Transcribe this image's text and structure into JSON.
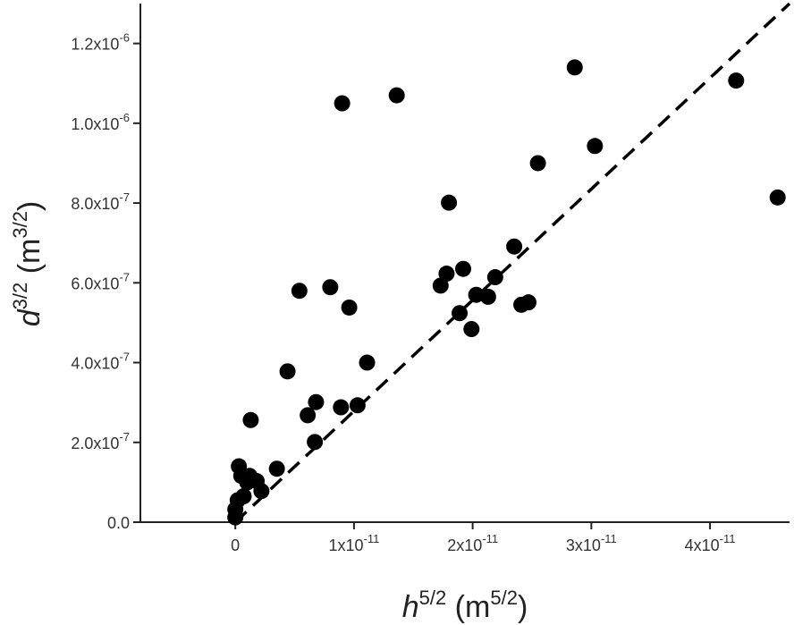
{
  "chart_data": {
    "type": "scatter",
    "xlabel": {
      "base": "h",
      "sup": "5/2",
      "unit_base": "m",
      "unit_sup": "5/2"
    },
    "ylabel": {
      "base": "d",
      "sup": "3/2",
      "unit_base": "m",
      "unit_sup": "3/2"
    },
    "xlim": [
      -8e-12,
      4.67e-11
    ],
    "ylim": [
      0,
      1.3e-06
    ],
    "x_ticks": [
      {
        "value": 0,
        "mantissa": "0",
        "exp": ""
      },
      {
        "value": 1e-11,
        "mantissa": "1x10",
        "exp": "-11"
      },
      {
        "value": 2e-11,
        "mantissa": "2x10",
        "exp": "-11"
      },
      {
        "value": 3e-11,
        "mantissa": "3x10",
        "exp": "-11"
      },
      {
        "value": 4e-11,
        "mantissa": "4x10",
        "exp": "-11"
      }
    ],
    "y_ticks": [
      {
        "value": 0,
        "mantissa": "0.0",
        "exp": ""
      },
      {
        "value": 2e-07,
        "mantissa": "2.0x10",
        "exp": "-7"
      },
      {
        "value": 4e-07,
        "mantissa": "4.0x10",
        "exp": "-7"
      },
      {
        "value": 6e-07,
        "mantissa": "6.0x10",
        "exp": "-7"
      },
      {
        "value": 8e-07,
        "mantissa": "8.0x10",
        "exp": "-7"
      },
      {
        "value": 1e-06,
        "mantissa": "1.0x10",
        "exp": "-6"
      },
      {
        "value": 1.2e-06,
        "mantissa": "1.2x10",
        "exp": "-6"
      }
    ],
    "grid": false,
    "series": [
      {
        "type": "scatter",
        "color": "#000000",
        "points": [
          [
            0.0,
            1.2e-08
          ],
          [
            0.0,
            3.2e-08
          ],
          [
            2e-13,
            5.5e-08
          ],
          [
            5e-13,
            1.16e-07
          ],
          [
            3e-13,
            1.4e-07
          ],
          [
            7e-13,
            6.5e-08
          ],
          [
            1e-12,
            1e-07
          ],
          [
            1.2e-12,
            1.16e-07
          ],
          [
            1.8e-12,
            1.03e-07
          ],
          [
            2.2e-12,
            7.8e-08
          ],
          [
            1.3e-12,
            2.56e-07
          ],
          [
            3.5e-12,
            1.34e-07
          ],
          [
            4.4e-12,
            3.78e-07
          ],
          [
            5.4e-12,
            5.8e-07
          ],
          [
            6.1e-12,
            2.68e-07
          ],
          [
            6.8e-12,
            3.01e-07
          ],
          [
            6.7e-12,
            2.01e-07
          ],
          [
            8e-12,
            5.89e-07
          ],
          [
            8.9e-12,
            2.88e-07
          ],
          [
            9e-12,
            1.05e-06
          ],
          [
            9.6e-12,
            5.38e-07
          ],
          [
            1.03e-11,
            2.93e-07
          ],
          [
            1.11e-11,
            4e-07
          ],
          [
            1.36e-11,
            1.07e-06
          ],
          [
            1.73e-11,
            5.93e-07
          ],
          [
            1.78e-11,
            6.23e-07
          ],
          [
            1.8e-11,
            8.01e-07
          ],
          [
            1.89e-11,
            5.24e-07
          ],
          [
            1.92e-11,
            6.35e-07
          ],
          [
            1.99e-11,
            4.84e-07
          ],
          [
            2.03e-11,
            5.7e-07
          ],
          [
            2.13e-11,
            5.65e-07
          ],
          [
            2.19e-11,
            6.14e-07
          ],
          [
            2.35e-11,
            6.91e-07
          ],
          [
            2.41e-11,
            5.45e-07
          ],
          [
            2.47e-11,
            5.51e-07
          ],
          [
            2.55e-11,
            9e-07
          ],
          [
            2.86e-11,
            1.14e-06
          ],
          [
            3.03e-11,
            9.43e-07
          ],
          [
            4.22e-11,
            1.107e-06
          ],
          [
            4.57e-11,
            8.14e-07
          ]
        ]
      }
    ],
    "fit_line": {
      "style": "dashed",
      "color": "#000000",
      "x": [
        0,
        4.67e-11
      ],
      "y": [
        0,
        1.3e-06
      ]
    }
  }
}
